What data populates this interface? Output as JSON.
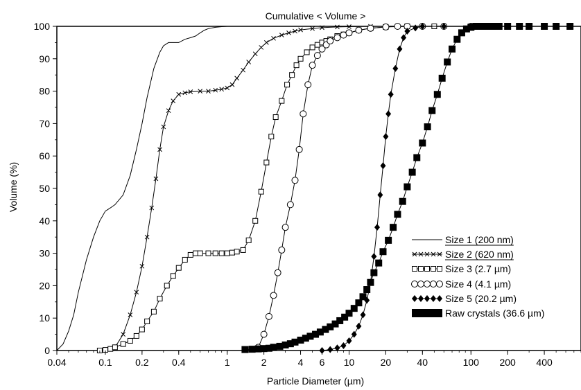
{
  "chart_data": {
    "type": "line",
    "title": "Cumulative < Volume >",
    "xlabel": "Particle Diameter (µm)",
    "ylabel": "Volume (%)",
    "x_scale": "log",
    "xlim": [
      0.04,
      800
    ],
    "ylim": [
      0,
      100
    ],
    "x_ticks": [
      0.04,
      0.1,
      0.2,
      0.4,
      1,
      2,
      4,
      6,
      10,
      20,
      40,
      100,
      200,
      400
    ],
    "x_tick_labels": [
      "0.04",
      "0.1",
      "0.2",
      "0.4",
      "1",
      "2",
      "4",
      "6",
      "10",
      "20",
      "40",
      "100",
      "200",
      "400"
    ],
    "y_ticks": [
      0,
      10,
      20,
      30,
      40,
      50,
      60,
      70,
      80,
      90,
      100
    ],
    "y_tick_labels": [
      "0",
      "10",
      "20",
      "30",
      "40",
      "50",
      "60",
      "70",
      "80",
      "90",
      "100"
    ],
    "grid": false,
    "legend_position": "bottom-right",
    "series": [
      {
        "name": "Size 1 (200 nm)",
        "marker": "none",
        "underline": true,
        "x": [
          0.04,
          0.045,
          0.05,
          0.055,
          0.06,
          0.07,
          0.08,
          0.09,
          0.1,
          0.11,
          0.12,
          0.14,
          0.16,
          0.18,
          0.2,
          0.22,
          0.25,
          0.28,
          0.3,
          0.33,
          0.36,
          0.4,
          0.45,
          0.5,
          0.55,
          0.6,
          0.65,
          0.7,
          0.8,
          0.9,
          1.0,
          1.5,
          2,
          5,
          20,
          100,
          800
        ],
        "y": [
          0,
          2,
          6,
          11,
          18,
          28,
          35,
          40,
          43,
          44,
          45,
          48,
          54,
          62,
          70,
          78,
          87,
          92,
          94,
          95,
          95,
          95,
          96,
          96.5,
          97,
          98,
          98.8,
          99.3,
          99.7,
          99.9,
          100,
          100,
          100,
          100,
          100,
          100,
          100
        ]
      },
      {
        "name": "Size 2 (620 nm)",
        "marker": "x",
        "underline": true,
        "x": [
          0.12,
          0.14,
          0.16,
          0.18,
          0.2,
          0.22,
          0.24,
          0.26,
          0.28,
          0.3,
          0.33,
          0.36,
          0.4,
          0.45,
          0.5,
          0.6,
          0.7,
          0.8,
          0.9,
          1.0,
          1.1,
          1.2,
          1.35,
          1.5,
          1.7,
          1.9,
          2.1,
          2.4,
          2.8,
          3.2,
          3.6,
          4,
          5,
          6,
          8,
          10,
          15,
          20,
          30,
          50,
          100,
          800
        ],
        "y": [
          1,
          5,
          11,
          18,
          26,
          35,
          44,
          53,
          62,
          69,
          74,
          77,
          79,
          79.5,
          79.8,
          80,
          80,
          80.3,
          80.6,
          81,
          82,
          84,
          86.5,
          89,
          91.5,
          93.5,
          95,
          96.3,
          97.3,
          98,
          98.5,
          98.9,
          99.3,
          99.6,
          99.8,
          99.9,
          100,
          100,
          100,
          100,
          100,
          100
        ]
      },
      {
        "name": "Size 3 (2.7 µm)",
        "marker": "square",
        "underline": false,
        "x": [
          0.09,
          0.1,
          0.11,
          0.12,
          0.14,
          0.16,
          0.18,
          0.2,
          0.22,
          0.25,
          0.28,
          0.32,
          0.36,
          0.4,
          0.45,
          0.5,
          0.55,
          0.6,
          0.7,
          0.8,
          0.9,
          1.0,
          1.1,
          1.2,
          1.35,
          1.5,
          1.7,
          1.9,
          2.1,
          2.3,
          2.5,
          2.8,
          3.1,
          3.4,
          3.7,
          4,
          4.5,
          5,
          5.5,
          6,
          6.5,
          7,
          8,
          9,
          10,
          12,
          15,
          20,
          30,
          50,
          100,
          800
        ],
        "y": [
          0,
          0.2,
          0.5,
          1,
          2,
          3,
          4.5,
          6.5,
          9,
          12,
          16,
          20,
          23,
          25.5,
          28,
          29.5,
          30,
          30,
          30,
          30,
          30,
          30,
          30.2,
          30.5,
          31,
          34,
          40,
          49,
          58,
          66,
          72,
          77,
          82,
          85,
          88,
          90,
          92,
          93.5,
          94.3,
          95,
          95.5,
          96,
          97,
          97.5,
          98,
          98.8,
          99.4,
          99.8,
          100,
          100,
          100,
          100
        ]
      },
      {
        "name": "Size 4 (4.1 µm)",
        "marker": "circle",
        "underline": false,
        "x": [
          1.8,
          2.0,
          2.2,
          2.4,
          2.6,
          2.8,
          3.0,
          3.3,
          3.6,
          3.9,
          4.2,
          4.6,
          5.0,
          5.5,
          6.0,
          6.5,
          7.0,
          8,
          9,
          10,
          12,
          15,
          20,
          25,
          30,
          40,
          60,
          100,
          800
        ],
        "y": [
          1,
          5,
          10.5,
          17,
          24,
          31,
          38,
          45,
          52.5,
          62,
          73,
          82,
          88,
          91,
          93,
          94.3,
          95.5,
          96.5,
          97.3,
          98,
          98.8,
          99.4,
          99.8,
          100,
          100,
          100,
          100,
          100,
          100
        ]
      },
      {
        "name": "Size 5 (20.2 µm)",
        "marker": "diamond",
        "underline": false,
        "x": [
          6,
          7,
          8,
          9,
          10,
          11,
          12,
          13,
          14,
          15,
          16,
          17,
          18,
          19,
          20,
          21,
          22,
          24,
          26,
          28,
          30,
          35,
          40,
          60,
          100,
          800
        ],
        "y": [
          0,
          0.3,
          0.8,
          1.5,
          3,
          5,
          7.5,
          11,
          15.5,
          21,
          29,
          38,
          48,
          57,
          66,
          73,
          79,
          87,
          93,
          96.5,
          98.5,
          99.5,
          100,
          100,
          100,
          100
        ]
      },
      {
        "name": "Raw crystals (36.6 µm)",
        "marker": "filled-square",
        "underline": false,
        "x": [
          1.4,
          1.6,
          1.8,
          2.0,
          2.2,
          2.4,
          2.7,
          3.0,
          3.3,
          3.6,
          4.0,
          4.4,
          4.8,
          5.3,
          5.8,
          6.4,
          7.0,
          7.7,
          8.4,
          9.2,
          10,
          11,
          12,
          13,
          14,
          15,
          16,
          17.5,
          19,
          21,
          23,
          25,
          27.5,
          30,
          33,
          36,
          40,
          44,
          48,
          53,
          58,
          64,
          70,
          77,
          84,
          92,
          100,
          110,
          120,
          135,
          150,
          170,
          200,
          250,
          300,
          400,
          500,
          650,
          800
        ],
        "y": [
          0.3,
          0.4,
          0.5,
          0.6,
          0.7,
          1,
          1.3,
          1.7,
          2.1,
          2.6,
          3.2,
          3.8,
          4.4,
          5,
          5.7,
          6.5,
          7.3,
          8.2,
          9.2,
          10.3,
          11.5,
          13,
          14.7,
          16.6,
          18.8,
          21,
          24,
          27,
          30.5,
          34,
          38,
          42,
          46,
          50.5,
          55,
          59.5,
          64,
          69,
          74,
          79,
          84,
          89,
          93,
          96,
          98,
          99.2,
          99.7,
          100,
          100,
          100,
          100,
          100,
          100,
          100,
          100,
          100,
          100,
          100,
          100
        ]
      }
    ]
  }
}
